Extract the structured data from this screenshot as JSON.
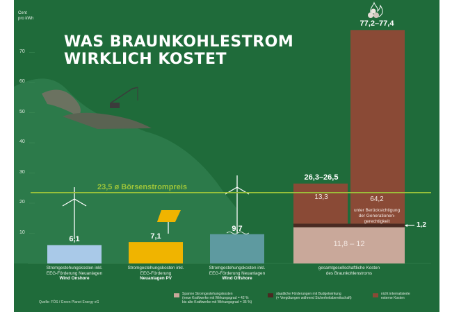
{
  "title_line1": "WAS BRAUNKOHLESTROM",
  "title_line2": "WIRKLICH KOSTET",
  "unit_line1": "Cent",
  "unit_line2": "pro kWh",
  "colors": {
    "background": "#1f6b3a",
    "mountain": "#2c7a4a",
    "spoil": "#6b7260",
    "wind_onshore": "#a9c9e8",
    "pv": "#f0b400",
    "offshore": "#5e9aa0",
    "coal_base": "#c9a89a",
    "coal_subsidy": "#4a2a22",
    "coal_external": "#8a4a36",
    "boersen_line": "#9cc43a"
  },
  "chart_data": {
    "type": "bar",
    "ylim": [
      0,
      80
    ],
    "yticks": [
      10,
      20,
      30,
      40,
      50,
      60,
      70
    ],
    "reference_line": {
      "value": 23.5,
      "label_value": "23,5",
      "label_text": "ø Börsenstrompreis"
    },
    "bars": [
      {
        "key": "wind_onshore",
        "value": 6.1,
        "label": "6,1",
        "category_lines": [
          "Stromgestehungskosten inkl.",
          "EEG-Förderung Neuanlagen"
        ],
        "category_bold": "Wind Onshore"
      },
      {
        "key": "pv",
        "value": 7.1,
        "label": "7,1",
        "category_lines": [
          "Stromgestehungskosten inkl.",
          "EEG-Förderung"
        ],
        "category_bold": "Neuanlagen PV"
      },
      {
        "key": "offshore",
        "value": 9.7,
        "label": "9,7",
        "category_lines": [
          "Stromgestehungskosten inkl.",
          "EEG-Förderung Neuanlagen"
        ],
        "category_bold": "Wind Offshore"
      }
    ],
    "coal": {
      "category_lines": [
        "gesamtgesellschaftliche Kosten",
        "des Braunkohlenstroms"
      ],
      "base": {
        "value": 12,
        "label": "11,8 – 12"
      },
      "subsidy": {
        "value": 1.2,
        "label": "1,2"
      },
      "left_external": {
        "value": 13.3,
        "label": "13,3"
      },
      "left_total_label": "26,3–26,5",
      "right_external": {
        "value": 64.2,
        "label": "64,2",
        "note": [
          "unter Berücksichtigung",
          "der Generationen-",
          "gerechtigkeit"
        ]
      },
      "right_total_label": "77,2–77,4"
    },
    "legend": [
      {
        "key": "coal_base",
        "lines": [
          "Spanne Stromgestehungskosten",
          "(neue Kraftwerke mit Wirkungsgrad = 42 %",
          "bis alte Kraftwerke mit Wirkungsgrad = 35 %)"
        ]
      },
      {
        "key": "coal_subsidy",
        "lines": [
          "staatliche Förderungen mit Budgetwirkung",
          "(+ Vergütungen während Sicherheitsbereitschaft)"
        ]
      },
      {
        "key": "coal_external",
        "lines": [
          "nicht internalisierte",
          "externe Kosten"
        ]
      }
    ]
  },
  "source": "Quelle: FÖS / Green Planet Energy eG"
}
